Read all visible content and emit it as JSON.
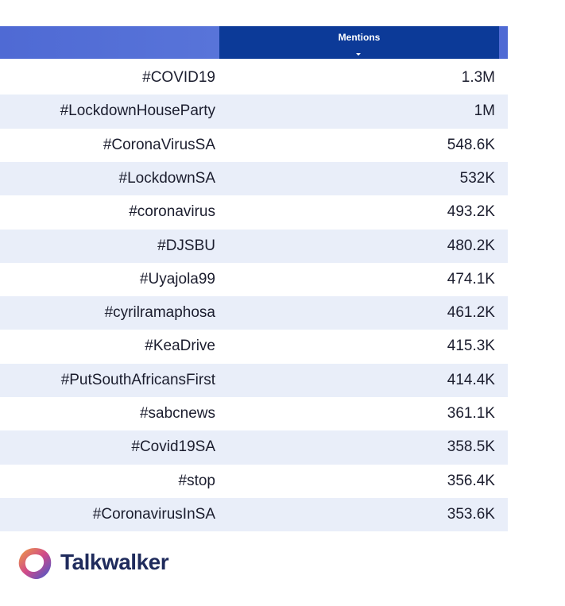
{
  "table": {
    "header": {
      "column": "Mentions"
    },
    "rows": [
      [
        "#COVID19",
        "1.3M"
      ],
      [
        "#LockdownHouseParty",
        "1M"
      ],
      [
        "#CoronaVirusSA",
        "548.6K"
      ],
      [
        "#LockdownSA",
        "532K"
      ],
      [
        "#coronavirus",
        "493.2K"
      ],
      [
        "#DJSBU",
        "480.2K"
      ],
      [
        "#Uyajola99",
        "474.1K"
      ],
      [
        "#cyrilramaphosa",
        "461.2K"
      ],
      [
        "#KeaDrive",
        "415.3K"
      ],
      [
        "#PutSouthAfricansFirst",
        "414.4K"
      ],
      [
        "#sabcnews",
        "361.1K"
      ],
      [
        "#Covid19SA",
        "358.5K"
      ],
      [
        "#stop",
        "356.4K"
      ],
      [
        "#CoronavirusInSA",
        "353.6K"
      ]
    ]
  },
  "footer": {
    "logo": "Talkwalker"
  }
}
